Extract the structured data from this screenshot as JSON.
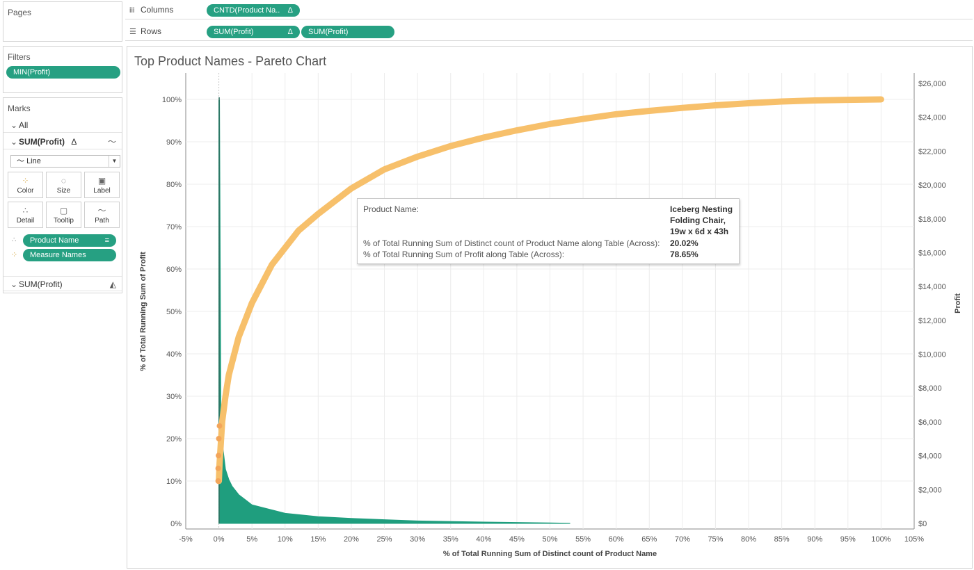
{
  "shelves": {
    "pages_label": "Pages",
    "columns_label": "Columns",
    "rows_label": "Rows",
    "columns_pills": [
      {
        "label": "CNTD(Product Na..",
        "delta": "Δ"
      }
    ],
    "rows_pills": [
      {
        "label": "SUM(Profit)",
        "delta": "Δ"
      },
      {
        "label": "SUM(Profit)"
      }
    ]
  },
  "filters": {
    "label": "Filters",
    "pills": [
      "MIN(Profit)"
    ]
  },
  "marks": {
    "label": "Marks",
    "all": "All",
    "sum_profit_1": "SUM(Profit)",
    "sum_profit_1_delta": "Δ",
    "mark_type": "Line",
    "buttons": [
      "Color",
      "Size",
      "Label",
      "Detail",
      "Tooltip",
      "Path"
    ],
    "fields": [
      "Product Name",
      "Measure Names"
    ],
    "sum_profit_2": "SUM(Profit)"
  },
  "tooltip": {
    "rows": [
      {
        "label": "Product Name:",
        "value": [
          "Iceberg Nesting",
          "Folding Chair,",
          "19w x 6d x 43h"
        ]
      },
      {
        "label": "% of Total Running Sum of Distinct count of Product Name along Table (Across):",
        "value": "20.02%"
      },
      {
        "label": "% of Total Running Sum of Profit along Table (Across):",
        "value": "78.65%"
      }
    ]
  },
  "colors": {
    "pill": "#26a082",
    "bars": "#1f9e7e",
    "line": "#f7c06b",
    "grid": "#ececec"
  },
  "chart_data": {
    "type": "pareto",
    "title": "Top Product Names - Pareto Chart",
    "xlabel": "% of Total Running Sum of Distinct count of Product Name",
    "ylabel_left": "% of Total Running Sum of Profit",
    "ylabel_right": "Profit",
    "x_ticks": [
      "-5%",
      "0%",
      "5%",
      "10%",
      "15%",
      "20%",
      "25%",
      "30%",
      "35%",
      "40%",
      "45%",
      "50%",
      "55%",
      "60%",
      "65%",
      "70%",
      "75%",
      "80%",
      "85%",
      "90%",
      "95%",
      "100%",
      "105%"
    ],
    "y_left_ticks": [
      "0%",
      "10%",
      "20%",
      "30%",
      "40%",
      "50%",
      "60%",
      "70%",
      "80%",
      "90%",
      "100%"
    ],
    "y_right_ticks": [
      "$0",
      "$2,000",
      "$4,000",
      "$6,000",
      "$8,000",
      "$10,000",
      "$12,000",
      "$14,000",
      "$16,000",
      "$18,000",
      "$20,000",
      "$22,000",
      "$24,000",
      "$26,000"
    ],
    "xlim": [
      -5,
      105
    ],
    "ylim_left": [
      0,
      100
    ],
    "ylim_right": [
      0,
      26000
    ],
    "cumulative_series": {
      "name": "% of Total Running Sum of Profit",
      "x": [
        0,
        0.1,
        0.3,
        0.5,
        1,
        1.5,
        2,
        3,
        4,
        5,
        6,
        8,
        10,
        12,
        15,
        20,
        25,
        30,
        35,
        40,
        45,
        50,
        55,
        60,
        65,
        70,
        75,
        80,
        85,
        90,
        95,
        100
      ],
      "y": [
        10,
        14,
        19,
        24,
        30,
        35,
        38,
        44,
        48,
        52,
        55,
        61,
        65,
        69,
        73,
        79,
        83.5,
        86.5,
        89,
        91,
        92.7,
        94.2,
        95.4,
        96.5,
        97.3,
        98,
        98.6,
        99.1,
        99.5,
        99.75,
        99.9,
        100
      ]
    },
    "bar_series": {
      "name": "Profit",
      "x": [
        0.1,
        0.3,
        0.6,
        1,
        1.5,
        2,
        3,
        4,
        5,
        7,
        10,
        15,
        20,
        25,
        30,
        40,
        50,
        53
      ],
      "y": [
        25000,
        7000,
        4500,
        3200,
        2600,
        2200,
        1700,
        1400,
        1100,
        900,
        600,
        400,
        300,
        220,
        150,
        80,
        30,
        10
      ]
    },
    "legend": "none",
    "grid": true
  }
}
